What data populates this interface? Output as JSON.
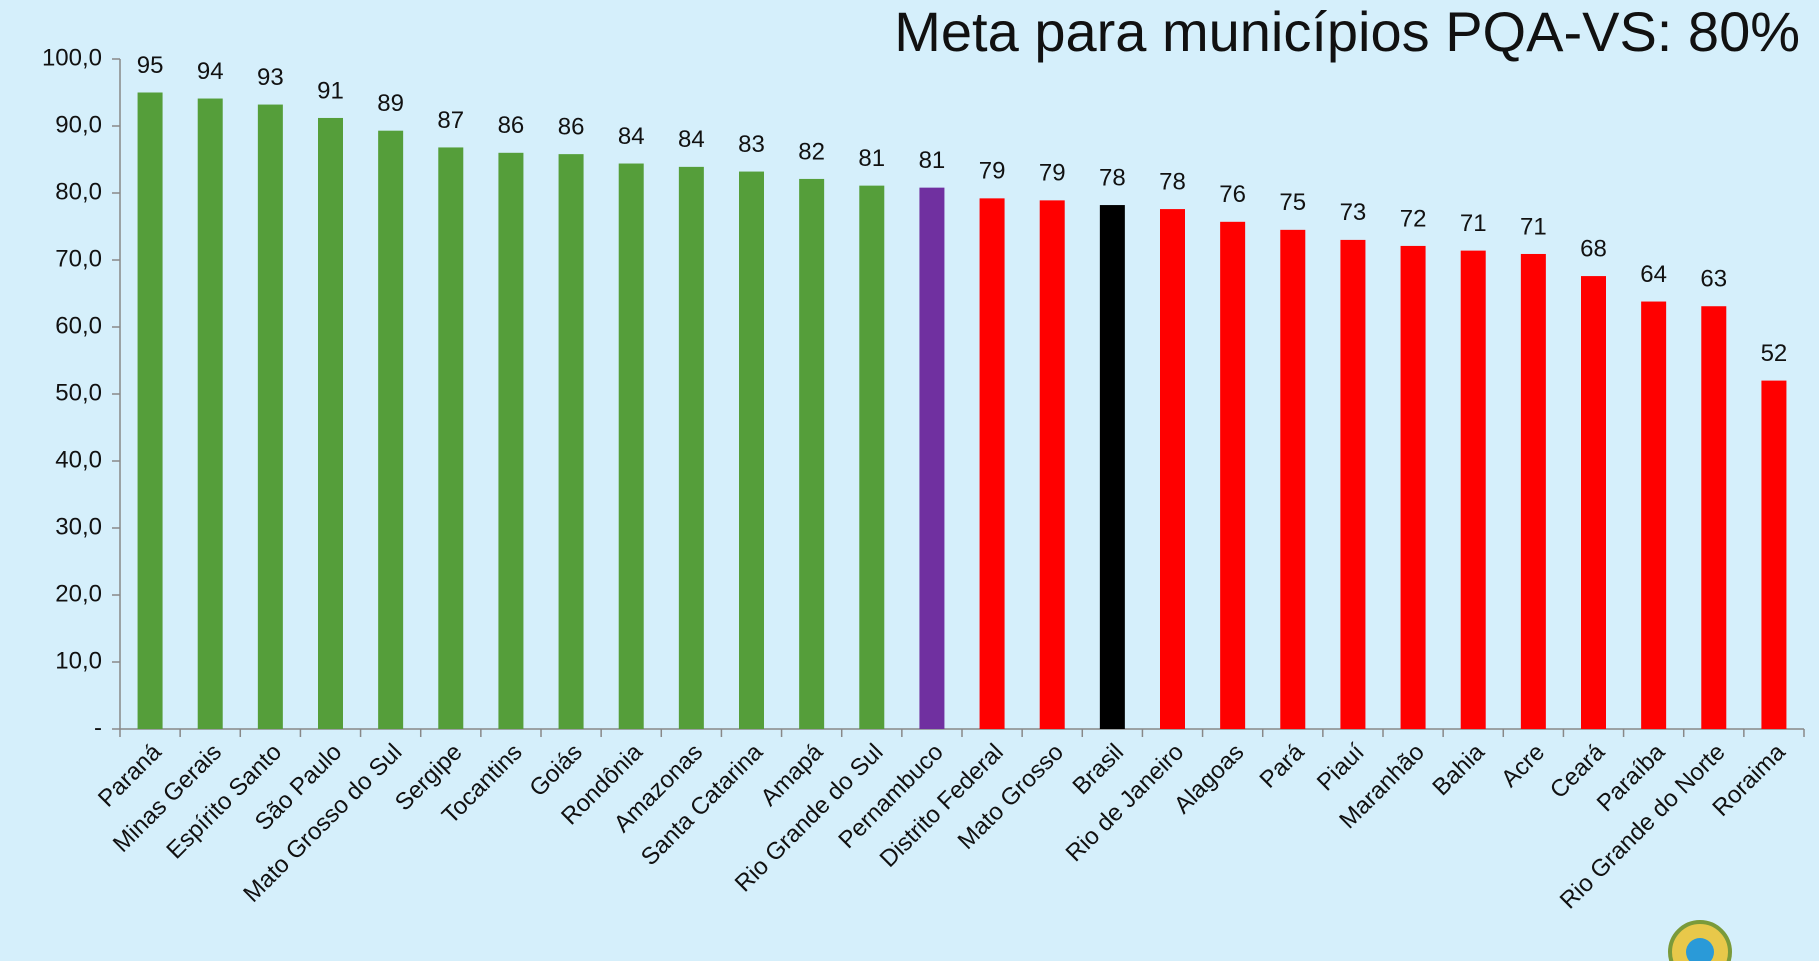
{
  "chart_data": {
    "type": "bar",
    "title": "Meta para municípios PQA-VS: 80%",
    "categories": [
      "Paraná",
      "Minas Gerais",
      "Espírito Santo",
      "São Paulo",
      "Mato Grosso do Sul",
      "Sergipe",
      "Tocantins",
      "Goiás",
      "Rondônia",
      "Amazonas",
      "Santa Catarina",
      "Amapá",
      "Rio Grande do Sul",
      "Pernambuco",
      "Distrito Federal",
      "Mato Grosso",
      "Brasil",
      "Rio de Janeiro",
      "Alagoas",
      "Pará",
      "Piauí",
      "Maranhão",
      "Bahia",
      "Acre",
      "Ceará",
      "Paraíba",
      "Rio Grande do Norte",
      "Roraima"
    ],
    "values": [
      95.0,
      94.1,
      93.2,
      91.2,
      89.3,
      86.8,
      86.0,
      85.8,
      84.4,
      83.9,
      83.2,
      82.1,
      81.1,
      80.8,
      79.2,
      78.9,
      78.2,
      77.6,
      75.7,
      74.5,
      73.0,
      72.1,
      71.4,
      70.9,
      67.6,
      63.8,
      63.1,
      52.0
    ],
    "value_labels": [
      "95",
      "94",
      "93",
      "91",
      "89",
      "87",
      "86",
      "86",
      "84",
      "84",
      "83",
      "82",
      "81",
      "81",
      "79",
      "79",
      "78",
      "78",
      "76",
      "75",
      "73",
      "72",
      "71",
      "71",
      "68",
      "64",
      "63",
      "52"
    ],
    "colors": [
      "#559e3a",
      "#559e3a",
      "#559e3a",
      "#559e3a",
      "#559e3a",
      "#559e3a",
      "#559e3a",
      "#559e3a",
      "#559e3a",
      "#559e3a",
      "#559e3a",
      "#559e3a",
      "#559e3a",
      "#7030a0",
      "#ff0000",
      "#ff0000",
      "#000000",
      "#ff0000",
      "#ff0000",
      "#ff0000",
      "#ff0000",
      "#ff0000",
      "#ff0000",
      "#ff0000",
      "#ff0000",
      "#ff0000",
      "#ff0000",
      "#ff0000"
    ],
    "ylim": [
      0,
      100
    ],
    "yticks": [
      {
        "value": 0,
        "label": "-"
      },
      {
        "value": 10,
        "label": "10,0"
      },
      {
        "value": 20,
        "label": "20,0"
      },
      {
        "value": 30,
        "label": "30,0"
      },
      {
        "value": 40,
        "label": "40,0"
      },
      {
        "value": 50,
        "label": "50,0"
      },
      {
        "value": 60,
        "label": "60,0"
      },
      {
        "value": 70,
        "label": "70,0"
      },
      {
        "value": 80,
        "label": "80,0"
      },
      {
        "value": 90,
        "label": "90,0"
      },
      {
        "value": 100,
        "label": "100,0"
      }
    ],
    "grid": false
  }
}
